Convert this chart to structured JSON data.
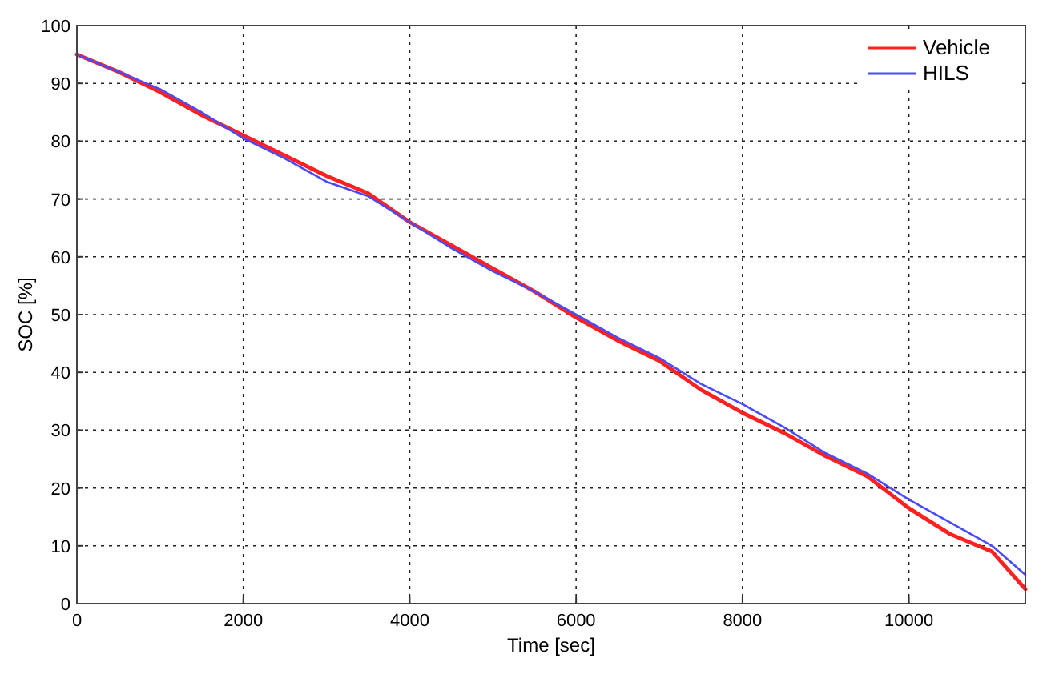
{
  "chart_data": {
    "type": "line",
    "xlabel": "Time [sec]",
    "ylabel": "SOC [%]",
    "xlim": [
      0,
      11400
    ],
    "xticks": [
      0,
      2000,
      4000,
      6000,
      8000,
      10000
    ],
    "ylim": [
      0,
      100
    ],
    "yticks": [
      0,
      10,
      20,
      30,
      40,
      50,
      60,
      70,
      80,
      90,
      100
    ],
    "grid": true,
    "legend": "top right",
    "line_style": "solid",
    "series": [
      {
        "name": "Vehicle",
        "color": "#ff2020",
        "x": [
          0,
          500,
          1000,
          1500,
          2000,
          2500,
          3000,
          3500,
          4000,
          4500,
          5000,
          5500,
          6000,
          6500,
          7000,
          7500,
          8000,
          8500,
          9000,
          9500,
          10000,
          10500,
          11000,
          11400
        ],
        "values": [
          95,
          92,
          88.5,
          84.5,
          81,
          77.5,
          74,
          71,
          66,
          62,
          58,
          54,
          49.5,
          45.5,
          42,
          37,
          33,
          29.5,
          25.5,
          22,
          16.5,
          12,
          9,
          2.5
        ]
      },
      {
        "name": "HILS",
        "color": "#4a4aff",
        "x": [
          0,
          500,
          1000,
          1500,
          2000,
          2500,
          3000,
          3500,
          4000,
          4500,
          5000,
          5500,
          6000,
          6500,
          7000,
          7500,
          8000,
          8500,
          9000,
          9500,
          10000,
          10500,
          11000,
          11400
        ],
        "values": [
          95,
          92,
          89,
          85,
          80.5,
          77,
          73,
          70.5,
          66,
          61.5,
          57.5,
          54,
          50,
          46,
          42.5,
          38,
          34.5,
          30.5,
          26,
          22.5,
          18,
          14,
          10,
          5
        ]
      }
    ]
  }
}
